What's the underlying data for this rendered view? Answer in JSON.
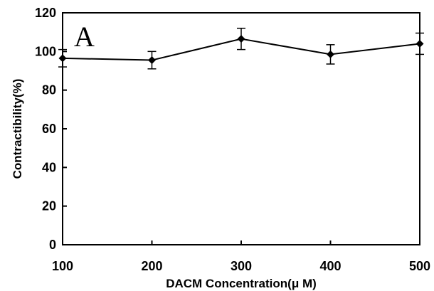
{
  "chart_data": {
    "type": "line",
    "panel_label": "A",
    "xlabel": "DACM Concentration(μ M)",
    "ylabel": "Contractibility(%)",
    "x": [
      100,
      200,
      300,
      400,
      500
    ],
    "series": [
      {
        "values": [
          96.5,
          95.5,
          106.5,
          98.5,
          104
        ],
        "error": [
          4.5,
          4.5,
          5.5,
          5,
          5.5
        ]
      }
    ],
    "xlim": [
      100,
      500
    ],
    "ylim": [
      0,
      120
    ],
    "x_ticks": [
      "100",
      "200",
      "300",
      "400",
      "500"
    ],
    "y_ticks": [
      "0",
      "20",
      "40",
      "60",
      "80",
      "100",
      "120"
    ],
    "marker": "diamond",
    "grid": false,
    "colors": {
      "line": "#000000",
      "background": "#ffffff"
    }
  }
}
